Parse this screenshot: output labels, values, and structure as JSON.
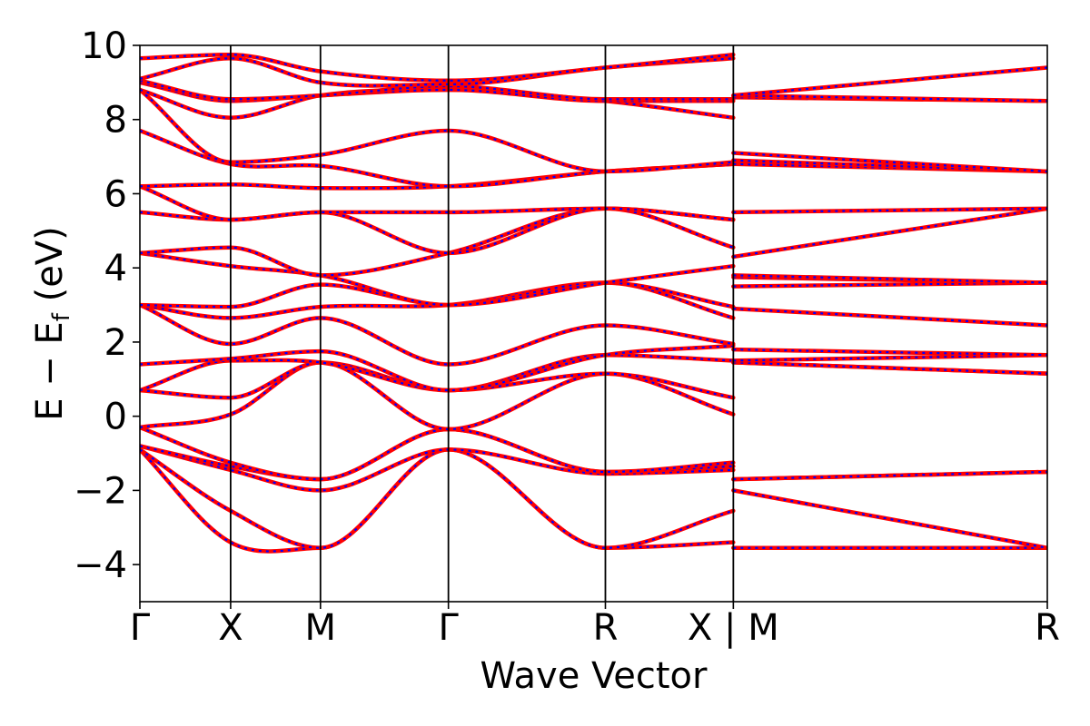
{
  "chart_data": {
    "type": "line",
    "xlabel": "Wave Vector",
    "ylabel": "E − E",
    "ylabel_sub": "f",
    "ylabel_unit": " (eV)",
    "ylim": [
      -5,
      10
    ],
    "yticks": [
      {
        "value": 10,
        "label": "10"
      },
      {
        "value": 8,
        "label": "8"
      },
      {
        "value": 6,
        "label": "6"
      },
      {
        "value": 4,
        "label": "4"
      },
      {
        "value": 2,
        "label": "2"
      },
      {
        "value": 0,
        "label": "0"
      },
      {
        "value": -2,
        "label": "−2"
      },
      {
        "value": -4,
        "label": "−4"
      }
    ],
    "xlim": [
      0,
      1
    ],
    "kpoints": [
      {
        "position": 0.0,
        "label": "Γ"
      },
      {
        "position": 0.1,
        "label": "X"
      },
      {
        "position": 0.199,
        "label": "M"
      },
      {
        "position": 0.34,
        "label": "Γ"
      },
      {
        "position": 0.513,
        "label": "R"
      },
      {
        "position": 0.654,
        "label": "X | M"
      },
      {
        "position": 1.0,
        "label": "R"
      }
    ],
    "grid": false,
    "legend": "none",
    "series_style": {
      "solid_color": "#ff0000",
      "dashed_color": "#0000ff"
    },
    "segments": [
      {
        "x_start": 0.0,
        "x_end": 0.654,
        "x": [
          0.0,
          0.1,
          0.199,
          0.34,
          0.513,
          0.654
        ],
        "bands": [
          [
            -0.9,
            -3.4,
            -3.55,
            -0.9,
            -3.55,
            -3.4
          ],
          [
            -0.9,
            -2.55,
            -3.55,
            -0.9,
            -3.55,
            -2.55
          ],
          [
            -0.8,
            -1.45,
            -2.0,
            -0.9,
            -1.55,
            -1.45
          ],
          [
            -0.8,
            -1.35,
            -1.7,
            -0.35,
            -1.5,
            -1.35
          ],
          [
            -0.3,
            -1.25,
            -1.7,
            -0.35,
            -1.5,
            -1.25
          ],
          [
            -0.3,
            0.05,
            1.45,
            -0.35,
            1.15,
            0.05
          ],
          [
            0.7,
            0.5,
            1.45,
            0.7,
            1.15,
            0.5
          ],
          [
            0.7,
            1.5,
            1.45,
            0.7,
            1.65,
            1.5
          ],
          [
            1.4,
            1.55,
            1.75,
            0.7,
            1.65,
            1.9
          ],
          [
            3.0,
            1.95,
            2.65,
            1.4,
            2.45,
            1.95
          ],
          [
            3.0,
            2.65,
            2.95,
            3.0,
            3.6,
            2.65
          ],
          [
            3.0,
            2.95,
            3.55,
            3.0,
            3.6,
            2.95
          ],
          [
            4.4,
            4.05,
            3.8,
            3.0,
            3.6,
            4.05
          ],
          [
            4.4,
            4.55,
            3.8,
            4.4,
            5.6,
            4.55
          ],
          [
            5.5,
            5.3,
            5.5,
            4.4,
            5.6,
            5.3
          ],
          [
            6.2,
            5.3,
            5.5,
            5.5,
            5.6,
            5.3
          ],
          [
            6.2,
            6.25,
            6.15,
            6.2,
            6.6,
            6.8
          ],
          [
            7.7,
            6.8,
            6.75,
            6.2,
            6.6,
            6.8
          ],
          [
            8.8,
            6.85,
            7.05,
            7.7,
            6.6,
            6.85
          ],
          [
            8.8,
            8.05,
            8.65,
            8.8,
            8.5,
            8.05
          ],
          [
            9.0,
            8.5,
            8.65,
            8.8,
            8.5,
            8.5
          ],
          [
            9.05,
            8.55,
            8.65,
            8.9,
            8.55,
            8.55
          ],
          [
            9.1,
            9.65,
            9.0,
            8.95,
            9.4,
            9.65
          ],
          [
            9.65,
            9.75,
            9.3,
            9.05,
            9.4,
            9.75
          ]
        ]
      },
      {
        "x_start": 0.654,
        "x_end": 1.0,
        "x": [
          0.654,
          1.0
        ],
        "bands": [
          [
            -3.55,
            -3.55
          ],
          [
            -2.0,
            -3.55
          ],
          [
            -1.7,
            -1.5
          ],
          [
            -1.7,
            -1.5
          ],
          [
            1.45,
            1.15
          ],
          [
            1.45,
            1.15
          ],
          [
            1.5,
            1.65
          ],
          [
            1.8,
            1.65
          ],
          [
            2.9,
            2.45
          ],
          [
            3.5,
            3.6
          ],
          [
            3.75,
            3.6
          ],
          [
            3.8,
            3.6
          ],
          [
            4.3,
            5.6
          ],
          [
            5.5,
            5.6
          ],
          [
            6.8,
            6.6
          ],
          [
            6.9,
            6.6
          ],
          [
            7.1,
            6.6
          ],
          [
            8.6,
            8.5
          ],
          [
            8.65,
            8.5
          ],
          [
            8.65,
            9.4
          ]
        ]
      }
    ]
  }
}
